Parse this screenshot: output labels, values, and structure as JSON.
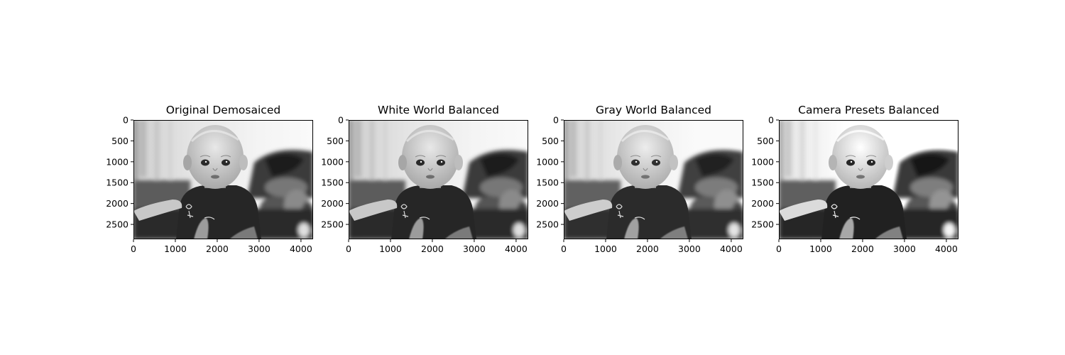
{
  "figure": {
    "panels": [
      {
        "title": "Original Demosaiced",
        "variant": "original"
      },
      {
        "title": "White World Balanced",
        "variant": "white_world"
      },
      {
        "title": "Gray World Balanced",
        "variant": "gray_world"
      },
      {
        "title": "Camera Presets Balanced",
        "variant": "camera_presets"
      }
    ],
    "image_content": "grayscale photograph of a baby sitting and looking at the camera",
    "x_ticks": [
      "0",
      "1000",
      "2000",
      "3000",
      "4000"
    ],
    "y_ticks": [
      "0",
      "500",
      "1000",
      "1500",
      "2000",
      "2500"
    ],
    "x_tick_values": [
      0,
      1000,
      2000,
      3000,
      4000
    ],
    "y_tick_values": [
      0,
      500,
      1000,
      1500,
      2000,
      2500
    ],
    "image_extent": {
      "width": 4290,
      "height": 2856
    }
  }
}
